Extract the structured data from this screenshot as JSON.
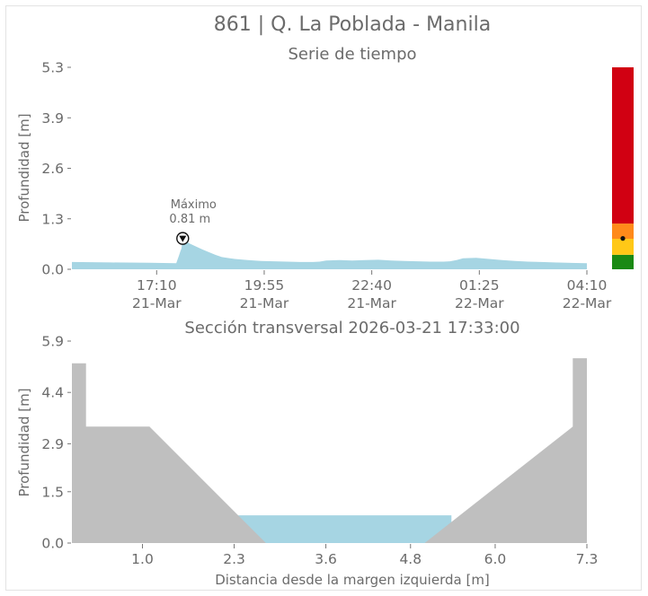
{
  "figure": {
    "title": "861 | Q. La Poblada - Manila"
  },
  "chart_data": [
    {
      "type": "area",
      "title": "Serie de tiempo",
      "ylabel": "Profundidad [m]",
      "xlabel": "",
      "y_ticks": [
        "0.0",
        "1.3",
        "2.6",
        "3.9",
        "5.3"
      ],
      "ylim": [
        0,
        5.3
      ],
      "x_tick_labels": [
        {
          "time": "17:10",
          "date": "21-Mar"
        },
        {
          "time": "19:55",
          "date": "21-Mar"
        },
        {
          "time": "22:40",
          "date": "21-Mar"
        },
        {
          "time": "01:25",
          "date": "22-Mar"
        },
        {
          "time": "04:10",
          "date": "22-Mar"
        }
      ],
      "x_tick_minutes": [
        1030,
        1195,
        1360,
        1525,
        1690
      ],
      "xlim_minutes": [
        900,
        1690
      ],
      "series": [
        {
          "color": "#a6d5e3",
          "x_minutes": [
            900,
            960,
            1020,
            1060,
            1064,
            1066,
            1068,
            1070,
            1075,
            1080,
            1090,
            1100,
            1110,
            1120,
            1130,
            1150,
            1170,
            1190,
            1210,
            1230,
            1250,
            1270,
            1280,
            1290,
            1310,
            1330,
            1350,
            1370,
            1390,
            1410,
            1430,
            1450,
            1470,
            1480,
            1490,
            1500,
            1520,
            1540,
            1560,
            1580,
            1600,
            1620,
            1640,
            1660,
            1690
          ],
          "depth": [
            0.19,
            0.18,
            0.17,
            0.16,
            0.35,
            0.45,
            0.55,
            0.81,
            0.75,
            0.68,
            0.6,
            0.52,
            0.45,
            0.38,
            0.32,
            0.27,
            0.24,
            0.22,
            0.21,
            0.2,
            0.19,
            0.19,
            0.2,
            0.23,
            0.24,
            0.23,
            0.24,
            0.25,
            0.23,
            0.22,
            0.21,
            0.2,
            0.2,
            0.21,
            0.24,
            0.29,
            0.3,
            0.27,
            0.24,
            0.22,
            0.2,
            0.19,
            0.18,
            0.17,
            0.16
          ]
        }
      ],
      "annotation": {
        "label": "Máximo",
        "value_text": "0.81 m",
        "x_minutes": 1070,
        "depth": 0.81
      },
      "alert_bar": {
        "max": 5.3,
        "levels": [
          {
            "from": 0.0,
            "to": 0.38,
            "color": "#1a8a14"
          },
          {
            "from": 0.38,
            "to": 0.8,
            "color": "#ffc817"
          },
          {
            "from": 0.8,
            "to": 1.2,
            "color": "#ff8a1a"
          },
          {
            "from": 1.2,
            "to": 5.3,
            "color": "#d10012"
          }
        ],
        "current": 0.81
      }
    },
    {
      "type": "area",
      "title": "Sección transversal 2026-03-21 17:33:00",
      "xlabel": "Distancia desde la margen izquierda [m]",
      "ylabel": "Profundidad [m]",
      "x_ticks": [
        "1.0",
        "2.3",
        "3.6",
        "4.8",
        "6.0",
        "7.3"
      ],
      "x_tick_values": [
        1.0,
        2.3,
        3.6,
        4.8,
        6.0,
        7.3
      ],
      "y_ticks": [
        "0.0",
        "1.5",
        "2.9",
        "4.4",
        "5.9"
      ],
      "y_tick_values": [
        0.0,
        1.5,
        2.9,
        4.4,
        5.9
      ],
      "xlim": [
        0.0,
        7.3
      ],
      "ylim": [
        0.0,
        5.9
      ],
      "bank_profile": {
        "color": "#bfbfbf",
        "x": [
          0.0,
          0.0,
          0.2,
          0.2,
          1.1,
          2.75,
          5.0,
          7.1,
          7.1,
          7.3,
          7.3
        ],
        "y": [
          0.0,
          5.25,
          5.25,
          3.4,
          3.4,
          0.0,
          0.0,
          3.4,
          5.4,
          5.4,
          0.0
        ]
      },
      "water": {
        "color": "#a6d5e3",
        "level": 0.81,
        "x": [
          2.36,
          5.38
        ],
        "bottom": 0.0
      }
    }
  ]
}
